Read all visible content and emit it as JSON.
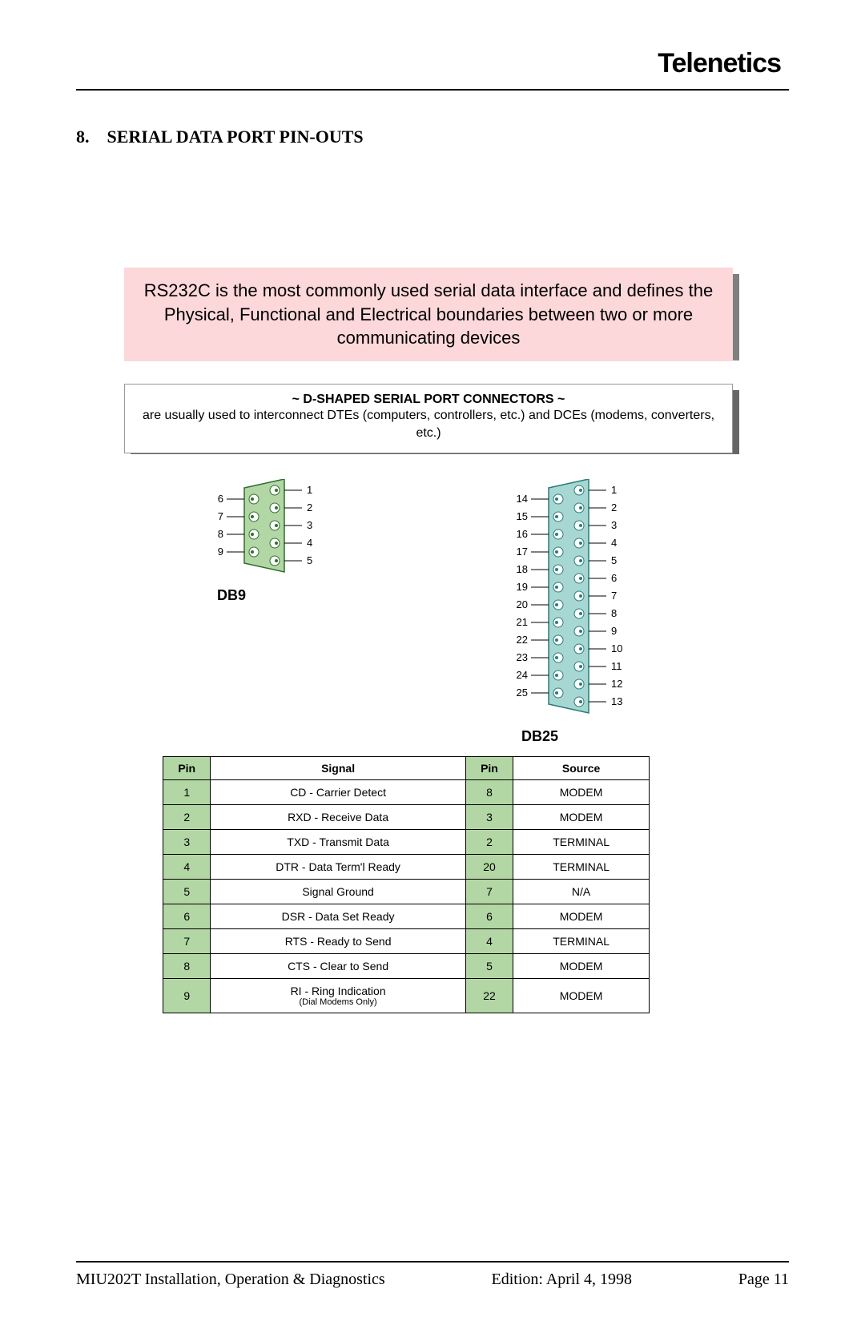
{
  "brand": "Telenetics",
  "section_number": "8.",
  "section_title": "SERIAL DATA PORT PIN-OUTS",
  "pink_box": {
    "text": "RS232C is the most commonly used serial data interface and defines the Physical, Functional and Electrical boundaries between two or more communicating devices",
    "bg_color": "#fcd8da",
    "shadow_color": "#808080",
    "font_size": 22
  },
  "grey_box": {
    "title": "~ D-SHAPED SERIAL PORT CONNECTORS ~",
    "text": "are usually used to interconnect DTEs (computers, controllers, etc.) and DCEs (modems, converters, etc.)",
    "bg_color": "#ffffff",
    "shadow_color": "#666666",
    "title_fontsize": 16,
    "text_fontsize": 16
  },
  "connectors": {
    "db9": {
      "label": "DB9",
      "body_color": "#b3d7a4",
      "stroke": "#2f6f2f",
      "left_pins": [
        6,
        7,
        8,
        9
      ],
      "right_pins": [
        1,
        2,
        3,
        4,
        5
      ]
    },
    "db25": {
      "label": "DB25",
      "body_color": "#a7d7d3",
      "stroke": "#2a7c78",
      "left_pins": [
        14,
        15,
        16,
        17,
        18,
        19,
        20,
        21,
        22,
        23,
        24,
        25
      ],
      "right_pins": [
        1,
        2,
        3,
        4,
        5,
        6,
        7,
        8,
        9,
        10,
        11,
        12,
        13
      ]
    }
  },
  "pinout_table": {
    "header_pin1": "Pin",
    "header_signal": "Signal",
    "header_pin2": "Pin",
    "header_source": "Source",
    "pin_col_bg": "#b3d7a4",
    "rows": [
      {
        "p1": "1",
        "signal": "CD - Carrier Detect",
        "sub": "",
        "p2": "8",
        "source": "MODEM"
      },
      {
        "p1": "2",
        "signal": "RXD - Receive Data",
        "sub": "",
        "p2": "3",
        "source": "MODEM"
      },
      {
        "p1": "3",
        "signal": "TXD - Transmit Data",
        "sub": "",
        "p2": "2",
        "source": "TERMINAL"
      },
      {
        "p1": "4",
        "signal": "DTR - Data Term'l Ready",
        "sub": "",
        "p2": "20",
        "source": "TERMINAL"
      },
      {
        "p1": "5",
        "signal": "Signal Ground",
        "sub": "",
        "p2": "7",
        "source": "N/A"
      },
      {
        "p1": "6",
        "signal": "DSR - Data Set Ready",
        "sub": "",
        "p2": "6",
        "source": "MODEM"
      },
      {
        "p1": "7",
        "signal": "RTS - Ready to Send",
        "sub": "",
        "p2": "4",
        "source": "TERMINAL"
      },
      {
        "p1": "8",
        "signal": "CTS - Clear to Send",
        "sub": "",
        "p2": "5",
        "source": "MODEM"
      },
      {
        "p1": "9",
        "signal": "RI - Ring Indication",
        "sub": "(Dial Modems Only)",
        "p2": "22",
        "source": "MODEM"
      }
    ]
  },
  "footer": {
    "doc_title": "MIU202T Installation, Operation & Diagnostics",
    "edition": "Edition:  April 4, 1998",
    "page": "Page 11"
  }
}
